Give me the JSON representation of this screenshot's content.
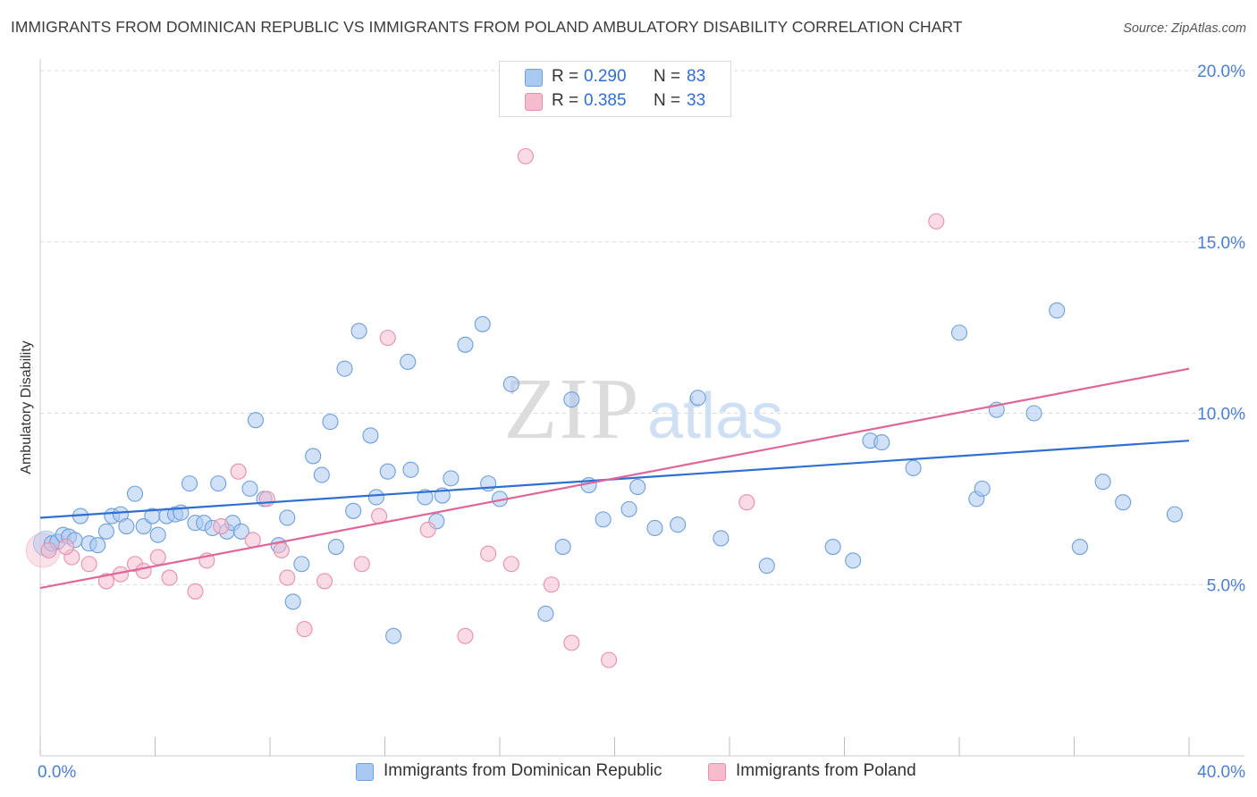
{
  "header": {
    "title": "IMMIGRANTS FROM DOMINICAN REPUBLIC VS IMMIGRANTS FROM POLAND AMBULATORY DISABILITY CORRELATION CHART",
    "source": "Source: ZipAtlas.com"
  },
  "watermark": {
    "zip": "ZIP",
    "atlas": "atlas"
  },
  "legend": {
    "rows": [
      {
        "r_label": "R =",
        "r_value": "0.290",
        "n_label": "N =",
        "n_value": "83"
      },
      {
        "r_label": "R =",
        "r_value": "0.385",
        "n_label": "N =",
        "n_value": "33"
      }
    ]
  },
  "bottom_legend": {
    "items": [
      {
        "label": "Immigrants from Dominican Republic"
      },
      {
        "label": "Immigrants from Poland"
      }
    ]
  },
  "chart_data": {
    "type": "scatter",
    "title": "IMMIGRANTS FROM DOMINICAN REPUBLIC VS IMMIGRANTS FROM POLAND AMBULATORY DISABILITY CORRELATION CHART",
    "xlabel": "",
    "ylabel": "Ambulatory Disability",
    "xlim": [
      0,
      40
    ],
    "ylim": [
      0,
      20
    ],
    "x_tick_labels": [
      "0.0%",
      "40.0%"
    ],
    "y_ticks": [
      5,
      10,
      15,
      20
    ],
    "y_tick_labels": [
      "5.0%",
      "10.0%",
      "15.0%",
      "20.0%"
    ],
    "grid": "horizontal dashed",
    "legend_position": "top-center",
    "colors": {
      "series1_fill": "#a9c8f2",
      "series1_stroke": "#6f9fdc",
      "series1_line": "#2e6fd1",
      "series2_fill": "#f6bccd",
      "series2_stroke": "#e691ac",
      "series2_line": "#e0669a",
      "tick_label": "#4a7fd4",
      "grid": "#d9d9d9"
    },
    "series": [
      {
        "name": "Immigrants from Dominican Republic",
        "R": 0.29,
        "N": 83,
        "trend": [
          [
            0,
            6.95
          ],
          [
            40,
            9.2
          ]
        ],
        "points": [
          [
            0.4,
            6.2
          ],
          [
            0.6,
            6.25
          ],
          [
            0.8,
            6.45
          ],
          [
            1.0,
            6.4
          ],
          [
            1.2,
            6.3
          ],
          [
            1.4,
            7.0
          ],
          [
            1.7,
            6.2
          ],
          [
            2.0,
            6.15
          ],
          [
            2.3,
            6.55
          ],
          [
            2.5,
            7.0
          ],
          [
            2.8,
            7.05
          ],
          [
            3.0,
            6.7
          ],
          [
            3.3,
            7.65
          ],
          [
            3.6,
            6.7
          ],
          [
            3.9,
            7.0
          ],
          [
            4.1,
            6.45
          ],
          [
            4.4,
            7.0
          ],
          [
            4.7,
            7.05
          ],
          [
            4.9,
            7.1
          ],
          [
            5.2,
            7.95
          ],
          [
            5.4,
            6.8
          ],
          [
            5.7,
            6.8
          ],
          [
            6.0,
            6.65
          ],
          [
            6.2,
            7.95
          ],
          [
            6.5,
            6.55
          ],
          [
            6.7,
            6.8
          ],
          [
            7.0,
            6.55
          ],
          [
            7.3,
            7.8
          ],
          [
            7.5,
            9.8
          ],
          [
            7.8,
            7.5
          ],
          [
            8.3,
            6.15
          ],
          [
            8.6,
            6.95
          ],
          [
            8.8,
            4.5
          ],
          [
            9.1,
            5.6
          ],
          [
            9.5,
            8.75
          ],
          [
            9.8,
            8.2
          ],
          [
            10.1,
            9.75
          ],
          [
            10.3,
            6.1
          ],
          [
            10.6,
            11.3
          ],
          [
            10.9,
            7.15
          ],
          [
            11.1,
            12.4
          ],
          [
            11.5,
            9.35
          ],
          [
            11.7,
            7.55
          ],
          [
            12.1,
            8.3
          ],
          [
            12.3,
            3.5
          ],
          [
            12.8,
            11.5
          ],
          [
            12.9,
            8.35
          ],
          [
            13.4,
            7.55
          ],
          [
            13.8,
            6.85
          ],
          [
            14.0,
            7.6
          ],
          [
            14.3,
            8.1
          ],
          [
            14.8,
            12.0
          ],
          [
            15.4,
            12.6
          ],
          [
            15.6,
            7.95
          ],
          [
            16.0,
            7.5
          ],
          [
            16.4,
            10.85
          ],
          [
            17.6,
            4.15
          ],
          [
            18.2,
            6.1
          ],
          [
            18.5,
            10.4
          ],
          [
            19.1,
            7.9
          ],
          [
            19.6,
            6.9
          ],
          [
            20.5,
            7.2
          ],
          [
            20.8,
            7.85
          ],
          [
            21.4,
            6.65
          ],
          [
            22.2,
            6.75
          ],
          [
            22.9,
            10.45
          ],
          [
            23.7,
            6.35
          ],
          [
            25.3,
            5.55
          ],
          [
            27.6,
            6.1
          ],
          [
            28.3,
            5.7
          ],
          [
            28.9,
            9.2
          ],
          [
            29.3,
            9.15
          ],
          [
            30.4,
            8.4
          ],
          [
            32.0,
            12.35
          ],
          [
            32.6,
            7.5
          ],
          [
            32.8,
            7.8
          ],
          [
            33.3,
            10.1
          ],
          [
            34.6,
            10.0
          ],
          [
            37.0,
            8.0
          ],
          [
            36.2,
            6.1
          ],
          [
            37.7,
            7.4
          ],
          [
            35.4,
            13.0
          ],
          [
            39.5,
            7.05
          ]
        ]
      },
      {
        "name": "Immigrants from Poland",
        "R": 0.385,
        "N": 33,
        "trend": [
          [
            0,
            4.9
          ],
          [
            40,
            11.3
          ]
        ],
        "points": [
          [
            0.3,
            6.0
          ],
          [
            1.1,
            5.8
          ],
          [
            1.7,
            5.6
          ],
          [
            2.3,
            5.1
          ],
          [
            2.8,
            5.3
          ],
          [
            3.3,
            5.6
          ],
          [
            3.6,
            5.4
          ],
          [
            4.1,
            5.8
          ],
          [
            4.5,
            5.2
          ],
          [
            5.4,
            4.8
          ],
          [
            5.8,
            5.7
          ],
          [
            6.3,
            6.7
          ],
          [
            6.9,
            8.3
          ],
          [
            7.4,
            6.3
          ],
          [
            7.9,
            7.5
          ],
          [
            8.4,
            6.0
          ],
          [
            8.6,
            5.2
          ],
          [
            9.2,
            3.7
          ],
          [
            9.9,
            5.1
          ],
          [
            11.2,
            5.6
          ],
          [
            11.8,
            7.0
          ],
          [
            12.1,
            12.2
          ],
          [
            13.5,
            6.6
          ],
          [
            14.8,
            3.5
          ],
          [
            15.6,
            5.9
          ],
          [
            16.4,
            5.6
          ],
          [
            16.9,
            17.5
          ],
          [
            17.8,
            5.0
          ],
          [
            18.5,
            3.3
          ],
          [
            19.8,
            2.8
          ],
          [
            24.6,
            7.4
          ],
          [
            31.2,
            15.6
          ],
          [
            0.9,
            6.1
          ]
        ]
      }
    ]
  }
}
